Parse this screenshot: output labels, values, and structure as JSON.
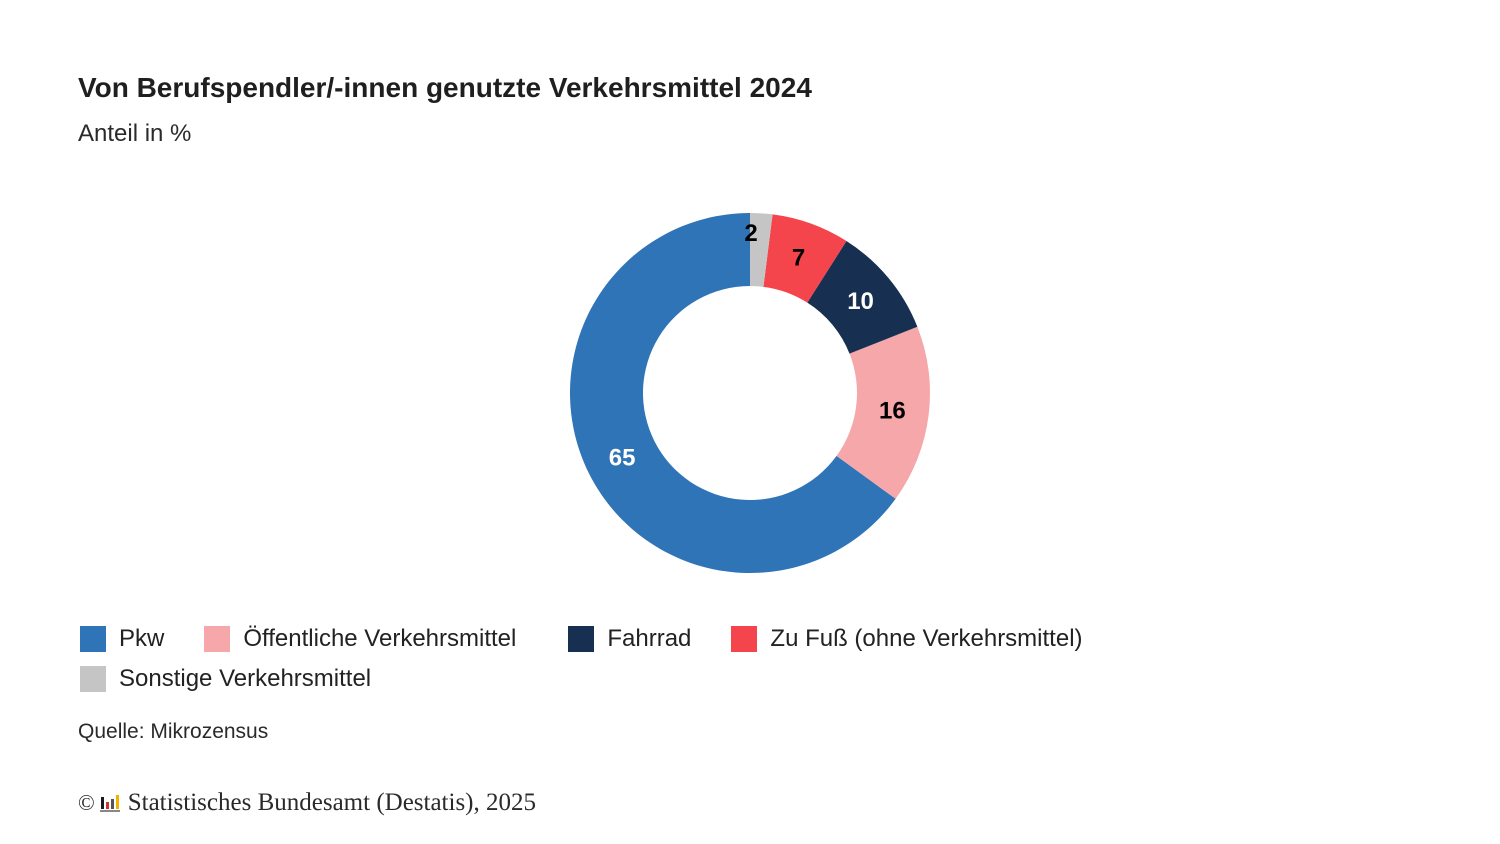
{
  "header": {
    "title": "Von Berufspendler/-innen genutzte Verkehrsmittel 2024",
    "subtitle": "Anteil in %"
  },
  "chart_data": {
    "type": "pie",
    "donut": true,
    "title": "Von Berufspendler/-innen genutzte Verkehrsmittel 2024",
    "subtitle": "Anteil in %",
    "categories": [
      "Pkw",
      "Öffentliche Verkehrsmittel",
      "Fahrrad",
      "Zu Fuß (ohne Verkehrsmittel)",
      "Sonstige Verkehrsmittel"
    ],
    "values": [
      65,
      16,
      10,
      7,
      2
    ],
    "colors": [
      "#2f74b6",
      "#f6a7a9",
      "#172f50",
      "#f4454c",
      "#c5c5c5"
    ],
    "label_colors": [
      "#ffffff",
      "#000000",
      "#ffffff",
      "#000000",
      "#000000"
    ],
    "legend_position": "bottom-left"
  },
  "legend": {
    "rows": [
      [
        {
          "label": "Pkw",
          "color": "#2f74b6"
        },
        {
          "label": "Öffentliche Verkehrsmittel",
          "color": "#f6a7a9"
        },
        {
          "label": "Fahrrad",
          "color": "#172f50"
        },
        {
          "label": "Zu Fuß (ohne Verkehrsmittel)",
          "color": "#f4454c"
        }
      ],
      [
        {
          "label": "Sonstige Verkehrsmittel",
          "color": "#c5c5c5"
        }
      ]
    ]
  },
  "footer": {
    "source": "Quelle: Mikrozensus",
    "copyright_symbol": "©",
    "copyright_text": "Statistisches Bundesamt (Destatis), 2025"
  }
}
